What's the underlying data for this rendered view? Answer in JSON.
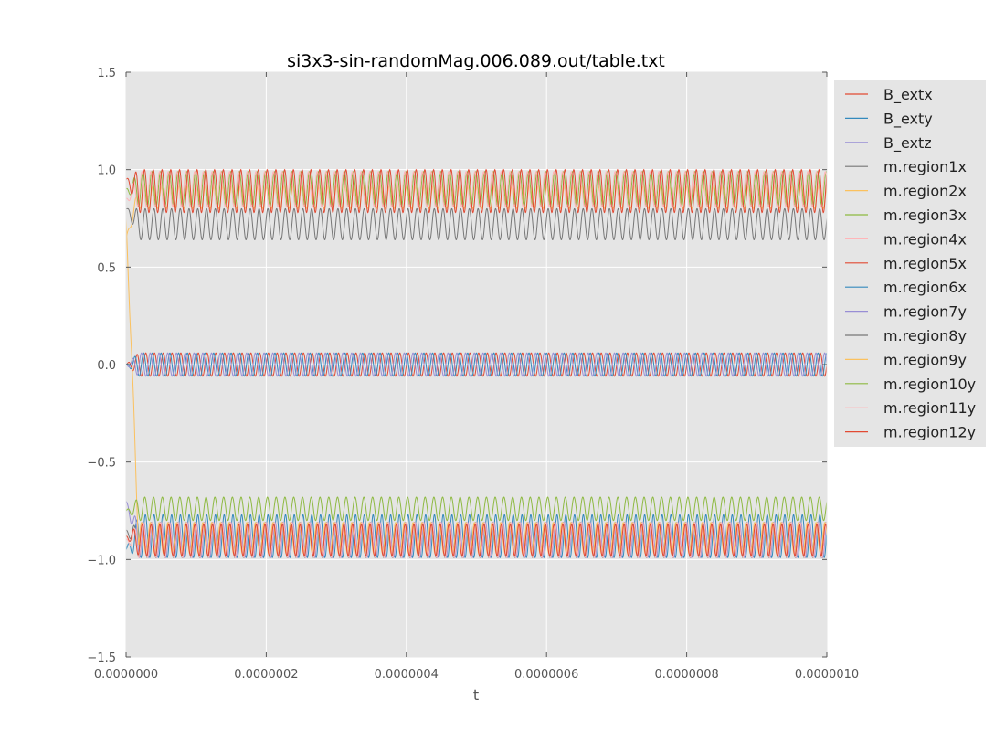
{
  "chart_data": {
    "type": "line",
    "title": "si3x3-sin-randomMag.006.089.out/table.txt",
    "xlabel": "t",
    "ylabel": "",
    "xlim": [
      0,
      1e-06
    ],
    "ylim": [
      -1.5,
      1.5
    ],
    "x_ticks": [
      "0.0000000",
      "0.0000002",
      "0.0000004",
      "0.0000006",
      "0.0000008",
      "0.0000010"
    ],
    "y_ticks": [
      "1.5",
      "1.0",
      "0.5",
      "0.0",
      "−0.5",
      "−1.0",
      "−1.5"
    ],
    "grid": true,
    "legend_position": "outside-right",
    "oscillation_cycles": 80,
    "series": [
      {
        "name": "B_extx",
        "color": "#E24A33",
        "mean": 0.0,
        "amplitude": 0.06,
        "start": 0.0,
        "phase": 0.0
      },
      {
        "name": "B_exty",
        "color": "#348ABD",
        "mean": 0.0,
        "amplitude": 0.06,
        "start": 0.0,
        "phase": 1.6
      },
      {
        "name": "B_extz",
        "color": "#988ED5",
        "mean": 0.0,
        "amplitude": 0.06,
        "start": 0.0,
        "phase": 3.1
      },
      {
        "name": "m.region1x",
        "color": "#777777",
        "mean": 0.72,
        "amplitude": 0.08,
        "start": 0.8,
        "phase": 0.4
      },
      {
        "name": "m.region2x",
        "color": "#FBC15E",
        "mean": 0.86,
        "amplitude": 0.06,
        "start": 0.65,
        "phase": 1.1
      },
      {
        "name": "m.region3x",
        "color": "#8EBA42",
        "mean": 0.9,
        "amplitude": 0.09,
        "start": 0.9,
        "phase": 2.0
      },
      {
        "name": "m.region4x",
        "color": "#FFB5B8",
        "mean": 0.9,
        "amplitude": 0.09,
        "start": 0.85,
        "phase": 2.7
      },
      {
        "name": "m.region5x",
        "color": "#E24A33",
        "mean": 0.89,
        "amplitude": 0.11,
        "start": 0.95,
        "phase": 0.9
      },
      {
        "name": "m.region6x",
        "color": "#348ABD",
        "mean": -0.88,
        "amplitude": 0.11,
        "start": -0.95,
        "phase": 0.3
      },
      {
        "name": "m.region7y",
        "color": "#988ED5",
        "mean": -0.9,
        "amplitude": 0.09,
        "start": -0.7,
        "phase": 1.4
      },
      {
        "name": "m.region8y",
        "color": "#777777",
        "mean": -0.9,
        "amplitude": 0.09,
        "start": -0.85,
        "phase": 2.2
      },
      {
        "name": "m.region9y",
        "color": "#FBC15E",
        "mean": -0.89,
        "amplitude": 0.08,
        "start": 0.75,
        "phase": 3.0
      },
      {
        "name": "m.region10y",
        "color": "#8EBA42",
        "mean": -0.74,
        "amplitude": 0.06,
        "start": -0.75,
        "phase": 0.7
      },
      {
        "name": "m.region11y",
        "color": "#FFB5B8",
        "mean": -0.9,
        "amplitude": 0.09,
        "start": -0.9,
        "phase": 1.9
      },
      {
        "name": "m.region12y",
        "color": "#E24A33",
        "mean": -0.9,
        "amplitude": 0.08,
        "start": -0.88,
        "phase": 2.5
      }
    ]
  }
}
